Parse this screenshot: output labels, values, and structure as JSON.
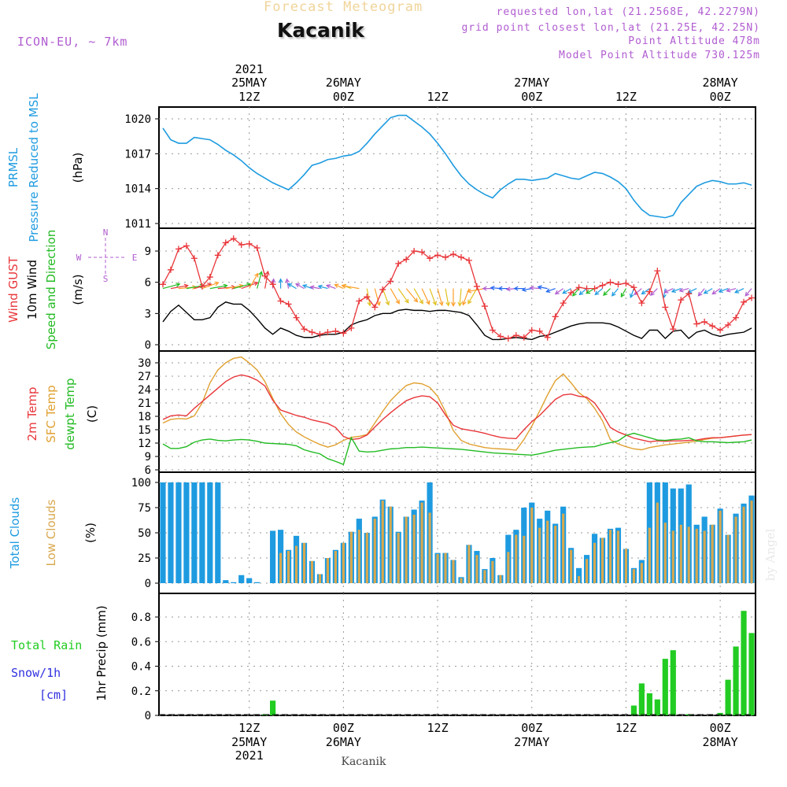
{
  "header": {
    "title_top": "Forecast Meteogram",
    "location": "Kacanik",
    "model": "ICON-EU, ~ 7km",
    "requested": "requested lon,lat (21.2568E, 42.2279N)",
    "grid_point": "grid point closest lon,lat (21.25E, 42.25N)",
    "point_altitude": "Point Altitude 478m",
    "model_altitude": "Model Point Altitude 730.125m",
    "footer_location": "Kacanik",
    "credit": "by Angel"
  },
  "colors": {
    "pressure": "#1e9be0",
    "gust": "#e8363a",
    "wind": "#000000",
    "green": "#22bb22",
    "sfc": "#e0a030",
    "purple": "#b05cd0",
    "total_clouds": "#1e9be0",
    "low_clouds": "#d8a84e",
    "rain": "#22cc22",
    "snow": "#3030e0",
    "grid": "#999999"
  },
  "chart_data": [
    {
      "type": "line",
      "panel": "pressure",
      "ylabel_lines": [
        "PRMSL",
        "Pressure Reduced to MSL"
      ],
      "unit": "(hPa)",
      "yticks": [
        1011,
        1014,
        1017,
        1020
      ],
      "ylim": [
        1011,
        1021
      ],
      "x_hours": [
        0,
        1,
        2,
        3,
        4,
        5,
        6,
        7,
        8,
        9,
        10,
        11,
        12,
        13,
        14,
        15,
        16,
        17,
        18,
        19,
        20,
        21,
        22,
        23,
        24,
        25,
        26,
        27,
        28,
        29,
        30,
        31,
        32,
        33,
        34,
        35,
        36,
        37,
        38,
        39,
        40,
        41,
        42,
        43,
        44,
        45,
        46,
        47,
        48,
        49,
        50,
        51,
        52,
        53,
        54,
        55,
        56,
        57,
        58,
        59,
        60,
        61,
        62,
        63,
        64,
        65,
        66,
        67,
        68,
        69,
        70,
        71,
        72,
        73,
        74,
        75
      ],
      "series": [
        {
          "key": "prmsl",
          "values": [
            1019.2,
            1018.2,
            1017.9,
            1017.9,
            1018.4,
            1018.3,
            1018.2,
            1017.8,
            1017.3,
            1016.9,
            1016.4,
            1015.8,
            1015.3,
            1014.9,
            1014.5,
            1014.2,
            1013.9,
            1014.5,
            1015.2,
            1016.0,
            1016.2,
            1016.5,
            1016.6,
            1016.8,
            1016.9,
            1017.2,
            1017.9,
            1018.7,
            1019.4,
            1020.1,
            1020.3,
            1020.3,
            1019.8,
            1019.3,
            1018.7,
            1017.9,
            1017.0,
            1016.0,
            1015.1,
            1014.4,
            1013.9,
            1013.5,
            1013.2,
            1013.9,
            1014.4,
            1014.8,
            1014.8,
            1014.7,
            1014.8,
            1014.9,
            1015.3,
            1015.1,
            1014.9,
            1014.8,
            1015.1,
            1015.4,
            1015.3,
            1015.0,
            1014.6,
            1014.0,
            1013.0,
            1012.2,
            1011.7,
            1011.6,
            1011.5,
            1011.7,
            1012.8,
            1013.5,
            1014.2,
            1014.5,
            1014.7,
            1014.6,
            1014.4,
            1014.4,
            1014.5,
            1014.3
          ]
        }
      ]
    },
    {
      "type": "line",
      "panel": "wind",
      "ylabel_lines": [
        "Wind GUST",
        "10m Wind",
        "Speed and Direction"
      ],
      "unit": "(m/s)",
      "compass": {
        "n": "N",
        "s": "S",
        "w": "W",
        "e": "E"
      },
      "yticks": [
        0,
        3,
        6,
        9
      ],
      "ylim": [
        0,
        10.5
      ],
      "series": [
        {
          "key": "gust",
          "values": [
            5.8,
            7.2,
            9.2,
            9.5,
            8.3,
            5.6,
            6.5,
            8.6,
            9.8,
            10.2,
            9.6,
            9.7,
            9.3,
            6.6,
            5.8,
            4.2,
            3.9,
            2.6,
            1.5,
            1.2,
            1.0,
            1.2,
            1.3,
            1.1,
            1.6,
            4.2,
            4.6,
            3.6,
            5.3,
            6.1,
            7.8,
            8.2,
            9.0,
            8.9,
            8.3,
            8.6,
            8.4,
            8.7,
            8.4,
            8.1,
            5.6,
            3.7,
            1.4,
            0.8,
            0.6,
            0.9,
            0.7,
            1.4,
            1.3,
            0.7,
            2.7,
            4.0,
            5.0,
            5.5,
            5.4,
            5.4,
            5.7,
            6.0,
            5.8,
            5.9,
            5.5,
            4.0,
            5.1,
            7.1,
            3.6,
            1.5,
            4.3,
            4.9,
            2.0,
            2.2,
            1.8,
            1.4,
            1.9,
            2.6,
            4.1,
            4.5
          ]
        },
        {
          "key": "wind10m",
          "values": [
            2.2,
            3.2,
            3.8,
            3.1,
            2.4,
            2.4,
            2.6,
            3.6,
            4.1,
            3.9,
            3.9,
            3.3,
            2.5,
            1.6,
            1.0,
            1.6,
            1.3,
            0.9,
            0.7,
            0.7,
            0.9,
            1.0,
            1.0,
            1.2,
            1.9,
            2.2,
            2.4,
            2.8,
            3.0,
            3.0,
            3.3,
            3.4,
            3.3,
            3.3,
            3.2,
            3.3,
            3.3,
            3.2,
            3.1,
            2.8,
            1.9,
            0.9,
            0.5,
            0.5,
            0.6,
            0.7,
            0.6,
            0.5,
            0.8,
            0.9,
            1.2,
            1.5,
            1.8,
            2.0,
            2.1,
            2.1,
            2.1,
            2.0,
            1.7,
            1.3,
            0.9,
            0.6,
            1.4,
            1.4,
            0.6,
            1.3,
            1.4,
            0.6,
            1.2,
            1.4,
            1.0,
            0.8,
            1.0,
            1.1,
            1.2,
            1.6
          ]
        }
      ]
    },
    {
      "type": "line",
      "panel": "temperature",
      "ylabel_lines": [
        "2m Temp",
        "SFC Temp",
        "dewpt Temp"
      ],
      "unit": "(C)",
      "yticks": [
        6,
        9,
        12,
        15,
        18,
        21,
        24,
        27,
        30
      ],
      "ylim": [
        6,
        32
      ],
      "series": [
        {
          "key": "t2m",
          "values": [
            17.3,
            18.1,
            18.3,
            18.1,
            19.8,
            21.3,
            22.8,
            24.3,
            25.8,
            26.8,
            27.3,
            26.9,
            26.1,
            24.8,
            21.6,
            19.4,
            18.8,
            18.2,
            17.8,
            17.2,
            16.8,
            16.4,
            15.5,
            13.5,
            12.8,
            13.0,
            13.8,
            15.6,
            17.3,
            18.8,
            20.2,
            21.5,
            22.2,
            22.6,
            22.4,
            21.0,
            18.3,
            16.0,
            15.2,
            14.9,
            14.6,
            14.2,
            13.7,
            13.3,
            13.1,
            13.0,
            15.0,
            16.8,
            18.2,
            20.0,
            21.8,
            22.8,
            23.0,
            22.5,
            22.3,
            21.0,
            18.5,
            15.5,
            14.5,
            13.8,
            13.1,
            12.7,
            12.3,
            12.5,
            12.4,
            12.5,
            12.5,
            12.6,
            12.7,
            13.0,
            13.2,
            13.2,
            13.4,
            13.6,
            13.8,
            13.9
          ]
        },
        {
          "key": "sfc",
          "values": [
            16.5,
            17.3,
            17.5,
            17.4,
            18.1,
            21.0,
            25.5,
            28.4,
            30.0,
            31.0,
            31.3,
            30.0,
            28.4,
            25.8,
            22.0,
            18.6,
            16.2,
            14.5,
            13.4,
            12.5,
            11.7,
            11.1,
            11.6,
            12.6,
            13.3,
            13.5,
            13.9,
            16.5,
            19.1,
            21.5,
            23.3,
            24.9,
            25.5,
            25.3,
            24.5,
            22.5,
            19.0,
            14.8,
            12.6,
            11.8,
            11.4,
            11.0,
            10.8,
            10.7,
            10.6,
            10.4,
            12.8,
            15.8,
            19.2,
            22.8,
            26.0,
            27.5,
            25.5,
            23.3,
            22.0,
            19.8,
            17.0,
            12.8,
            11.8,
            11.2,
            10.7,
            10.5,
            11.0,
            11.3,
            11.6,
            11.8,
            12.0,
            12.2,
            12.4,
            12.8,
            13.1,
            13.2,
            13.4,
            13.6,
            13.8,
            13.9
          ]
        },
        {
          "key": "dewpoint",
          "values": [
            11.8,
            10.8,
            10.8,
            11.2,
            12.2,
            12.7,
            12.9,
            12.6,
            12.5,
            12.7,
            12.8,
            12.7,
            12.4,
            12.0,
            11.9,
            11.8,
            11.7,
            11.4,
            10.5,
            10.0,
            9.6,
            8.5,
            7.9,
            7.2,
            13.2,
            10.2,
            10.0,
            10.1,
            10.4,
            10.7,
            10.8,
            11.0,
            11.0,
            11.1,
            11.0,
            10.9,
            10.8,
            10.7,
            10.6,
            10.4,
            10.2,
            10.0,
            9.8,
            9.7,
            9.6,
            9.5,
            9.4,
            9.3,
            9.6,
            10.0,
            10.4,
            10.6,
            10.8,
            11.0,
            11.1,
            11.2,
            11.7,
            12.1,
            12.5,
            13.7,
            14.2,
            13.7,
            13.2,
            12.7,
            12.6,
            12.8,
            12.9,
            13.2,
            12.5,
            12.3,
            12.3,
            12.2,
            12.1,
            12.2,
            12.3,
            12.7
          ]
        }
      ]
    },
    {
      "type": "bar",
      "panel": "clouds",
      "ylabel_lines": [
        "Total Clouds",
        "Low Clouds"
      ],
      "unit": "(%)",
      "yticks": [
        0,
        25,
        50,
        75,
        100
      ],
      "ylim": [
        0,
        100
      ],
      "series": [
        {
          "key": "total",
          "values": [
            100,
            100,
            100,
            100,
            100,
            100,
            100,
            100,
            3,
            1,
            8,
            5,
            1,
            0,
            52,
            53,
            33,
            47,
            40,
            22,
            9,
            25,
            33,
            40,
            51,
            64,
            50,
            66,
            83,
            76,
            51,
            66,
            73,
            82,
            100,
            30,
            30,
            23,
            6,
            38,
            32,
            14,
            25,
            8,
            48,
            53,
            75,
            80,
            64,
            72,
            59,
            76,
            35,
            15,
            28,
            49,
            45,
            54,
            55,
            34,
            15,
            23,
            100,
            100,
            100,
            94,
            94,
            98,
            58,
            66,
            58,
            74,
            48,
            69,
            79,
            87
          ]
        },
        {
          "key": "low",
          "values": [
            0,
            0,
            0,
            0,
            0,
            0,
            0,
            0,
            0,
            0,
            0,
            0,
            0,
            0,
            0,
            30,
            32,
            37,
            40,
            22,
            9,
            25,
            32,
            40,
            51,
            53,
            50,
            64,
            82,
            76,
            50,
            66,
            68,
            80,
            70,
            29,
            30,
            23,
            5,
            38,
            28,
            13,
            22,
            8,
            31,
            48,
            47,
            75,
            55,
            62,
            57,
            69,
            33,
            7,
            24,
            40,
            45,
            53,
            52,
            34,
            14,
            20,
            55,
            80,
            60,
            52,
            58,
            56,
            54,
            52,
            58,
            72,
            48,
            66,
            76,
            82
          ]
        }
      ]
    },
    {
      "type": "bar",
      "panel": "precip",
      "ylabel_lines": [
        "Total  Rain",
        "Snow/1h",
        "[cm]"
      ],
      "unit": "1hr Precip (mm)",
      "yticks": [
        0,
        0.2,
        0.4,
        0.6,
        0.8
      ],
      "ylim": [
        0,
        0.95
      ],
      "series": [
        {
          "key": "rain",
          "values": [
            0,
            0,
            0,
            0,
            0,
            0,
            0,
            0,
            0,
            0,
            0,
            0,
            0,
            0.01,
            0.12,
            0,
            0,
            0,
            0,
            0,
            0,
            0,
            0,
            0,
            0,
            0,
            0,
            0,
            0,
            0,
            0,
            0,
            0,
            0,
            0,
            0,
            0,
            0,
            0,
            0,
            0,
            0,
            0,
            0,
            0,
            0,
            0,
            0,
            0,
            0,
            0,
            0,
            0,
            0,
            0,
            0,
            0,
            0,
            0,
            0,
            0.08,
            0.26,
            0.18,
            0.13,
            0.46,
            0.53,
            0,
            0.01,
            0,
            0,
            0,
            0.02,
            0.29,
            0.56,
            0.85,
            0.67
          ]
        }
      ]
    }
  ],
  "time_axis": {
    "ticks": [
      {
        "hour": 11,
        "top": "12Z",
        "bottom": "12Z"
      },
      {
        "hour": 23,
        "top": "00Z",
        "bottom": "00Z"
      },
      {
        "hour": 35,
        "top": "12Z",
        "bottom": "12Z"
      },
      {
        "hour": 47,
        "top": "00Z",
        "bottom": "00Z"
      },
      {
        "hour": 59,
        "top": "12Z",
        "bottom": "12Z"
      },
      {
        "hour": 71,
        "top": "00Z",
        "bottom": "00Z"
      }
    ],
    "top_dates": [
      {
        "hour": 11,
        "lines": [
          "2021",
          "25MAY"
        ]
      },
      {
        "hour": 23,
        "lines": [
          "26MAY"
        ]
      },
      {
        "hour": 47,
        "lines": [
          "27MAY"
        ]
      },
      {
        "hour": 71,
        "lines": [
          "28MAY"
        ]
      }
    ],
    "bottom_dates": [
      {
        "hour": 11,
        "lines": [
          "25MAY",
          "2021"
        ]
      },
      {
        "hour": 23,
        "lines": [
          "26MAY"
        ]
      },
      {
        "hour": 47,
        "lines": [
          "27MAY"
        ]
      },
      {
        "hour": 71,
        "lines": [
          "28MAY"
        ]
      }
    ]
  }
}
